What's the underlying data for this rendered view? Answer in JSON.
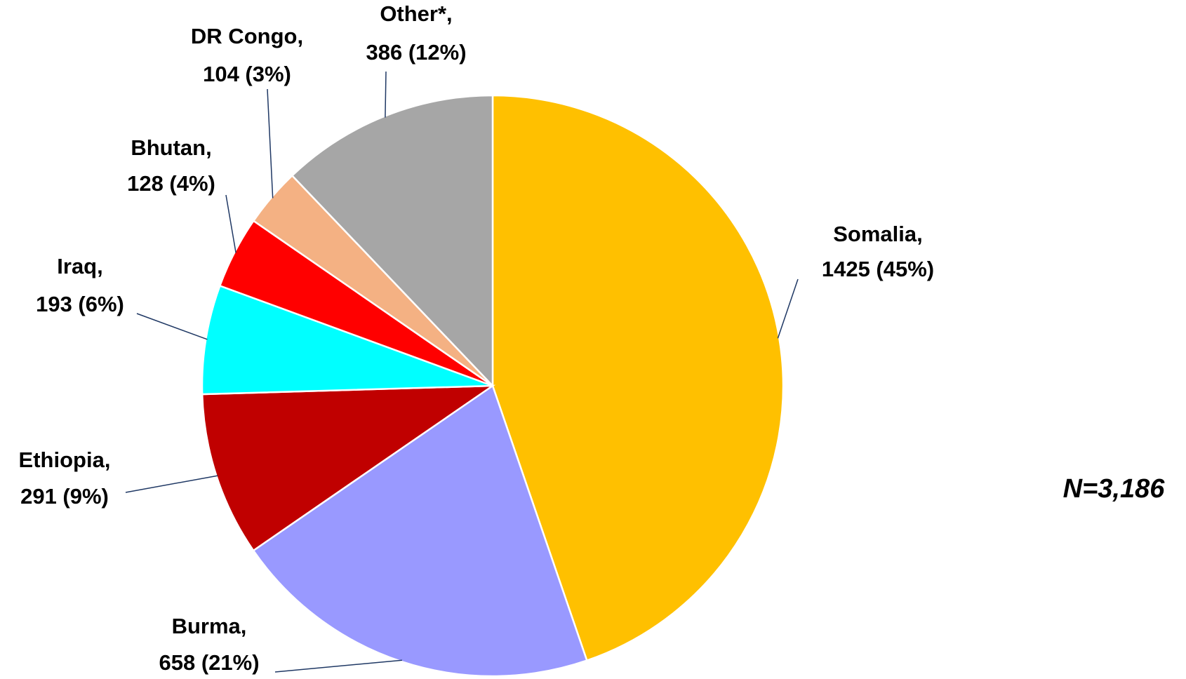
{
  "chart_data": {
    "type": "pie",
    "categories": [
      "Somalia,",
      "Burma,",
      "Ethiopia,",
      "Iraq,",
      "Bhutan,",
      "DR Congo,",
      "Other*,"
    ],
    "values": [
      1425,
      658,
      291,
      193,
      128,
      104,
      386
    ],
    "value_labels": [
      "1425 (45%)",
      "658 (21%)",
      "291 (9%)",
      "193 (6%)",
      "128 (4%)",
      "104 (3%)",
      "386 (12%)"
    ],
    "colors": [
      "#FFC000",
      "#9999FF",
      "#C00000",
      "#00FFFF",
      "#FF0000",
      "#F4B183",
      "#A6A6A6"
    ],
    "annotation": "N=3,186"
  }
}
